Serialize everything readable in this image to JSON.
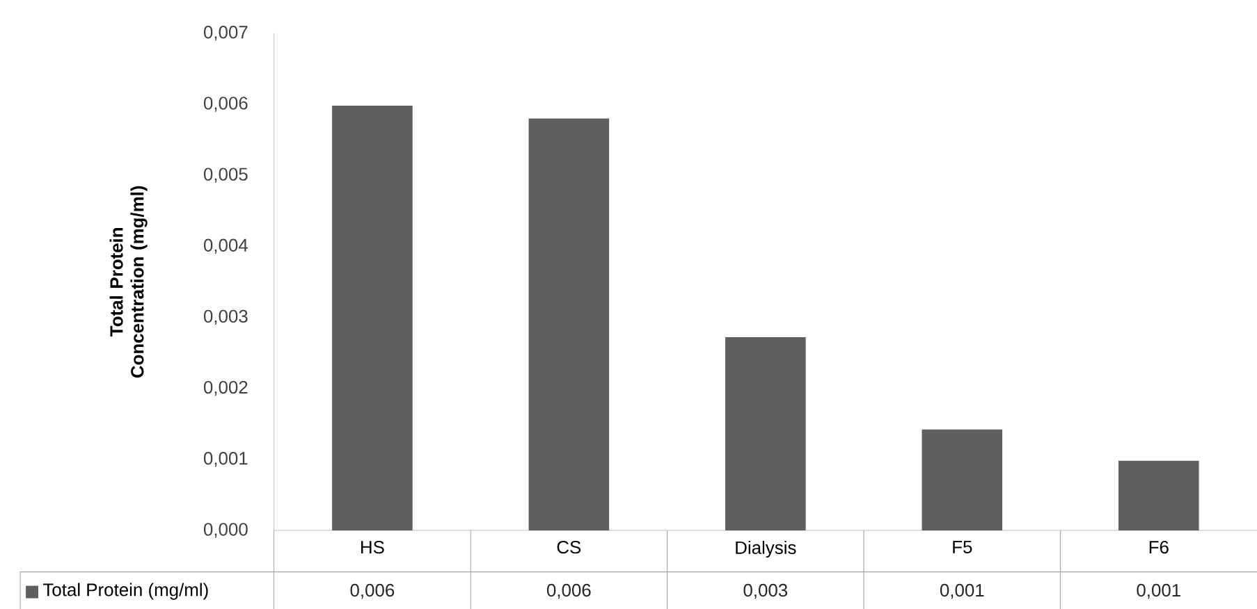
{
  "chart_data": {
    "type": "bar",
    "ylabel": "Total Protein Concentration (mg/ml)",
    "categories": [
      "HS",
      "CS",
      "Dialysis",
      "F5",
      "F6"
    ],
    "series": [
      {
        "name": "Total Protein (mg/ml)",
        "color": "#5f5f5f",
        "values": [
          0.00598,
          0.0058,
          0.00272,
          0.00142,
          0.00098
        ]
      }
    ],
    "value_labels": [
      "0,006",
      "0,006",
      "0,003",
      "0,001",
      "0,001"
    ],
    "ylim": [
      0,
      0.007
    ],
    "yticks": [
      {
        "value": 0,
        "label": "0,000"
      },
      {
        "value": 0.001,
        "label": "0,001"
      },
      {
        "value": 0.002,
        "label": "0,002"
      },
      {
        "value": 0.003,
        "label": "0,003"
      },
      {
        "value": 0.004,
        "label": "0,004"
      },
      {
        "value": 0.005,
        "label": "0,005"
      },
      {
        "value": 0.006,
        "label": "0,006"
      },
      {
        "value": 0.007,
        "label": "0,007"
      }
    ],
    "grid": false,
    "legend": "bottom left"
  }
}
